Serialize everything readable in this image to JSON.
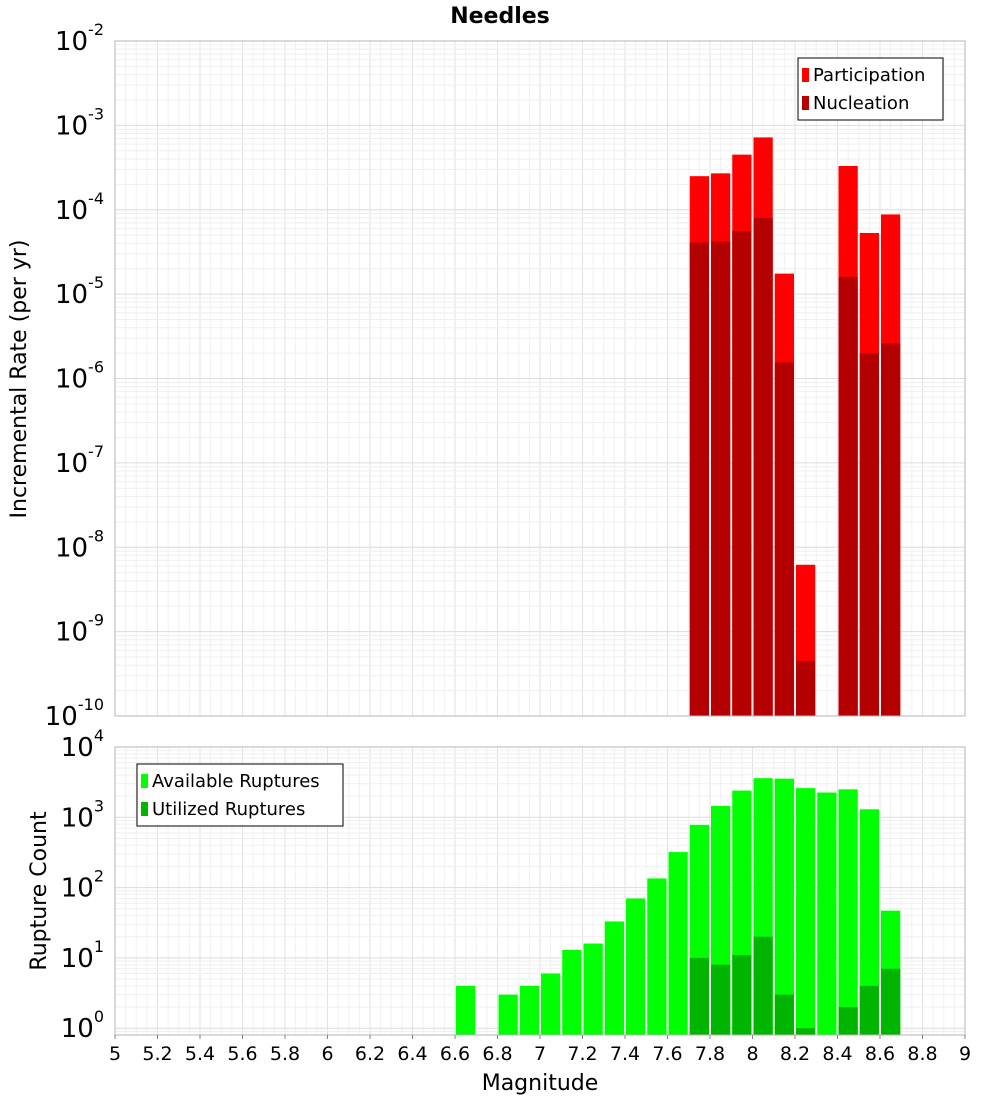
{
  "chart_data": [
    {
      "id": "rates",
      "type": "bar",
      "title": "Needles",
      "xlabel": "",
      "ylabel": "Incremental Rate (per yr)",
      "yscale": "log",
      "xlim": [
        5,
        9
      ],
      "ylim": [
        1e-10,
        0.01
      ],
      "y_decade_exponents": [
        -2,
        -3,
        -4,
        -5,
        -6,
        -7,
        -8,
        -9,
        -10
      ],
      "bar_width": 0.1,
      "grid": true,
      "legend_position": "top-right",
      "series": [
        {
          "name": "Participation",
          "color": "#ff0000",
          "x": [
            7.75,
            7.85,
            7.95,
            8.05,
            8.15,
            8.25,
            8.45,
            8.55,
            8.65
          ],
          "values": [
            0.00025,
            0.00027,
            0.00045,
            0.00072,
            1.75e-05,
            6.2e-09,
            0.00033,
            5.3e-05,
            8.8e-05
          ]
        },
        {
          "name": "Nucleation",
          "color": "#b40000",
          "x": [
            7.75,
            7.85,
            7.95,
            8.05,
            8.15,
            8.25,
            8.45,
            8.55,
            8.65
          ],
          "values": [
            4.1e-05,
            4.2e-05,
            5.6e-05,
            8e-05,
            1.55e-06,
            4.5e-10,
            1.6e-05,
            2e-06,
            2.6e-06
          ]
        }
      ]
    },
    {
      "id": "counts",
      "type": "bar",
      "title": "",
      "xlabel": "Magnitude",
      "ylabel": "Rupture Count",
      "yscale": "log",
      "xlim": [
        5,
        9
      ],
      "ylim": [
        0.8,
        10000
      ],
      "y_decade_exponents": [
        4,
        3,
        2,
        1,
        0
      ],
      "x_ticks": [
        "5",
        "5.2",
        "5.4",
        "5.6",
        "5.8",
        "6",
        "6.2",
        "6.4",
        "6.6",
        "6.8",
        "7",
        "7.2",
        "7.4",
        "7.6",
        "7.8",
        "8",
        "8.2",
        "8.4",
        "8.6",
        "8.8",
        "9"
      ],
      "bar_width": 0.1,
      "grid": true,
      "legend_position": "top-left",
      "series": [
        {
          "name": "Available Ruptures",
          "color": "#00ff00",
          "x": [
            6.65,
            6.85,
            6.95,
            7.05,
            7.15,
            7.25,
            7.35,
            7.45,
            7.55,
            7.65,
            7.75,
            7.85,
            7.95,
            8.05,
            8.15,
            8.25,
            8.35,
            8.45,
            8.55,
            8.65
          ],
          "values": [
            4,
            3,
            4,
            6,
            13,
            16,
            33,
            70,
            135,
            320,
            780,
            1450,
            2400,
            3600,
            3550,
            2600,
            2250,
            2500,
            1300,
            47
          ]
        },
        {
          "name": "Utilized Ruptures",
          "color": "#00b400",
          "x": [
            7.75,
            7.85,
            7.95,
            8.05,
            8.15,
            8.25,
            8.45,
            8.55,
            8.65
          ],
          "values": [
            10,
            8,
            11,
            20,
            3,
            1,
            2,
            4,
            7
          ]
        }
      ]
    }
  ]
}
